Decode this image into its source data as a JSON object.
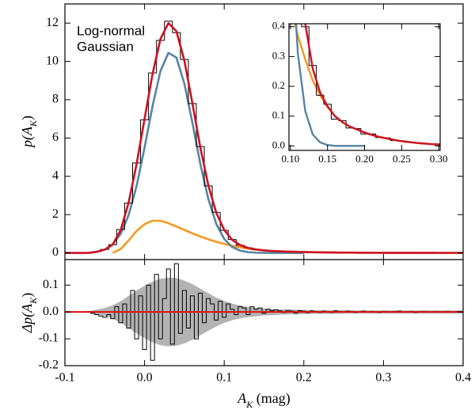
{
  "chart_data": [
    {
      "type": "line",
      "x": [
        -0.1,
        -0.09,
        -0.08,
        -0.07,
        -0.06,
        -0.05,
        -0.04,
        -0.03,
        -0.02,
        -0.01,
        0,
        0.01,
        0.02,
        0.03,
        0.04,
        0.05,
        0.06,
        0.07,
        0.08,
        0.09,
        0.1,
        0.11,
        0.12,
        0.13,
        0.14,
        0.15,
        0.16,
        0.17,
        0.18,
        0.19,
        0.2,
        0.21,
        0.22,
        0.23,
        0.24,
        0.25,
        0.26,
        0.27,
        0.28,
        0.29,
        0.3,
        0.31,
        0.32,
        0.33,
        0.34,
        0.35,
        0.36,
        0.37,
        0.38,
        0.39,
        0.4
      ],
      "series": [
        {
          "name": "Log-normal",
          "color": "#f39a1f",
          "values": [
            null,
            null,
            null,
            null,
            null,
            null,
            0,
            0.2,
            0.65,
            1.15,
            1.5,
            1.68,
            1.68,
            1.55,
            1.38,
            1.2,
            1.02,
            0.86,
            0.71,
            0.58,
            0.47,
            0.37,
            0.29,
            0.22,
            0.17,
            0.13,
            0.1,
            0.08,
            0.065,
            0.055,
            0.045,
            0.037,
            0.03,
            0.025,
            0.02,
            0.016,
            0.013,
            0.01,
            0.008,
            0.006,
            0.005,
            0.004,
            0.003,
            0.003,
            0.002,
            0.002,
            0.002,
            0.001,
            0.001,
            0.001,
            0.001
          ]
        },
        {
          "name": "Gaussian",
          "color": "#5784a3",
          "values": [
            null,
            null,
            null,
            null,
            0.06,
            0.17,
            0.44,
            0.99,
            1.98,
            3.49,
            5.5,
            7.66,
            9.5,
            10.45,
            10.2,
            8.84,
            6.81,
            4.65,
            2.83,
            1.52,
            0.73,
            0.31,
            0.117,
            0.039,
            0.012,
            0.003,
            0,
            0,
            0,
            0,
            0,
            null,
            null,
            null,
            null,
            null,
            null,
            null,
            null,
            null,
            null,
            null,
            null,
            null,
            null,
            null,
            null,
            null,
            null,
            null,
            null
          ]
        },
        {
          "color": "#000000",
          "steps": true,
          "values": [
            0,
            0,
            0,
            0.01,
            0.07,
            0.18,
            0.43,
            1.22,
            2.6,
            4.7,
            6.95,
            9.4,
            11.1,
            12.1,
            11.5,
            10.1,
            7.8,
            5.55,
            3.5,
            2.12,
            1.18,
            0.7,
            0.4,
            0.27,
            0.17,
            0.14,
            0.09,
            0.085,
            0.06,
            0.058,
            0.04,
            0.04,
            0.028,
            0.027,
            0.018,
            0.017,
            0.012,
            0.011,
            0.007,
            0.007,
            0.005,
            0.005,
            0.002,
            0.004,
            0.001,
            0.003,
            0.001,
            0.002,
            0,
            0.002,
            0.001
          ]
        },
        {
          "color": "#cc1122",
          "values": [
            0,
            0,
            0,
            0,
            0.06,
            0.17,
            0.44,
            1.19,
            2.63,
            4.64,
            7,
            9.34,
            11.18,
            12,
            11.58,
            10.04,
            7.83,
            5.51,
            3.54,
            2.1,
            1.2,
            0.68,
            0.41,
            0.26,
            0.18,
            0.133,
            0.1,
            0.08,
            0.065,
            0.055,
            0.045,
            0.037,
            0.03,
            0.025,
            0.02,
            0.016,
            0.013,
            0.01,
            0.008,
            0.006,
            0.005,
            0.004,
            0.003,
            0.003,
            0.002,
            0.002,
            0.002,
            0.001,
            0.001,
            0.001,
            0.001
          ]
        }
      ],
      "xlim": [
        -0.1,
        0.4
      ],
      "xticks": [
        -0.1,
        0,
        0.1,
        0.2,
        0.3,
        0.4
      ],
      "ylim": [
        -0.35,
        13
      ],
      "yticks": [
        0,
        2,
        4,
        6,
        8,
        10,
        12
      ],
      "ylabel": [
        "p(A",
        "K",
        ")"
      ],
      "legend": "upper left",
      "inset": {
        "xlim": [
          0.098,
          0.302
        ],
        "xticks": [
          {
            "value": 0.1,
            "label": "0.10"
          },
          0.15,
          {
            "value": 0.2,
            "label": "0.20"
          },
          0.25,
          {
            "value": 0.3,
            "label": "0.30"
          }
        ],
        "ylim": [
          -0.015,
          0.41
        ],
        "yticks": [
          {
            "value": 0,
            "label": "0.0"
          },
          0.1,
          0.2,
          0.3,
          0.4
        ]
      }
    },
    {
      "type": "line",
      "x": [
        -0.1,
        -0.095,
        -0.09,
        -0.085,
        -0.08,
        -0.075,
        -0.07,
        -0.065,
        -0.06,
        -0.055,
        -0.05,
        -0.045,
        -0.04,
        -0.035,
        -0.03,
        -0.025,
        -0.02,
        -0.015,
        -0.01,
        -0.005,
        0,
        0.005,
        0.01,
        0.015,
        0.02,
        0.025,
        0.03,
        0.035,
        0.04,
        0.045,
        0.05,
        0.055,
        0.06,
        0.065,
        0.07,
        0.075,
        0.08,
        0.085,
        0.09,
        0.095,
        0.1,
        0.105,
        0.11,
        0.115,
        0.12,
        0.125,
        0.13,
        0.135,
        0.14,
        0.145,
        0.15,
        0.155,
        0.16,
        0.165,
        0.17,
        0.175,
        0.18,
        0.185,
        0.19,
        0.195,
        0.2,
        0.205,
        0.21,
        0.215,
        0.22,
        0.225,
        0.23,
        0.235,
        0.24,
        0.245,
        0.25,
        0.255,
        0.26,
        0.265,
        0.27,
        0.275,
        0.28,
        0.285,
        0.29,
        0.295,
        0.3,
        0.305,
        0.31,
        0.315,
        0.32,
        0.325,
        0.33,
        0.335,
        0.34,
        0.345,
        0.35,
        0.355,
        0.36,
        0.365,
        0.37,
        0.375,
        0.38,
        0.385,
        0.39,
        0.395,
        0.4
      ],
      "series": [
        {
          "color": "#000000",
          "steps": true,
          "values": [
            0,
            0,
            0,
            0,
            0,
            0,
            0.002,
            -0.005,
            -0.01,
            -0.015,
            -0.02,
            -0.01,
            -0.025,
            0.02,
            -0.04,
            0.03,
            -0.06,
            0.08,
            -0.1,
            0.06,
            -0.14,
            0.1,
            -0.18,
            0.14,
            -0.1,
            0.05,
            0.16,
            -0.12,
            0.18,
            -0.08,
            0.08,
            -0.06,
            0.06,
            -0.1,
            0.07,
            -0.04,
            0.05,
            0.03,
            -0.03,
            0.04,
            -0.02,
            0.03,
            0.01,
            -0.01,
            0.02,
            0.015,
            -0.01,
            0.02,
            0.01,
            0.015,
            -0.005,
            0.01,
            0.005,
            0.008,
            0.004,
            -0.002,
            0.006,
            0.003,
            -0.004,
            0.005,
            0.003,
            -0.003,
            0.004,
            0.002,
            -0.002,
            0.003,
            0.001,
            -0.002,
            0.004,
            0.002,
            -0.001,
            0.003,
            0.002,
            -0.002,
            0.001,
            0.003,
            -0.001,
            0.002,
            0.001,
            -0.002,
            0.002,
            0.001,
            -0.001,
            0.002,
            0.003,
            -0.001,
            0.001,
            0.002,
            -0.002,
            0.001,
            0.002,
            0.001,
            -0.001,
            0.002,
            0.001,
            0,
            0.002,
            -0.001,
            0.001,
            0.002,
            0.001
          ]
        }
      ],
      "band": {
        "color": "#b3b3b3",
        "x": [
          -0.1,
          -0.09,
          -0.08,
          -0.07,
          -0.06,
          -0.05,
          -0.04,
          -0.03,
          -0.02,
          -0.01,
          0,
          0.01,
          0.02,
          0.03,
          0.04,
          0.05,
          0.06,
          0.07,
          0.08,
          0.09,
          0.1,
          0.11,
          0.12,
          0.13,
          0.14,
          0.15,
          0.16,
          0.17,
          0.18,
          0.19,
          0.2,
          0.21,
          0.22,
          0.23,
          0.24,
          0.25,
          0.26,
          0.27,
          0.28,
          0.29,
          0.3,
          0.31,
          0.32,
          0.33,
          0.34,
          0.35,
          0.36,
          0.37,
          0.38,
          0.39,
          0.4
        ],
        "values": [
          0.003,
          0.003,
          0.003,
          0.003,
          0.009,
          0.015,
          0.025,
          0.04,
          0.06,
          0.08,
          0.098,
          0.113,
          0.124,
          0.128,
          0.126,
          0.117,
          0.104,
          0.087,
          0.07,
          0.054,
          0.041,
          0.031,
          0.024,
          0.019,
          0.016,
          0.013,
          0.012,
          0.01,
          0.009,
          0.009,
          0.008,
          0.007,
          0.007,
          0.007,
          0.007,
          0.007,
          0.006,
          0.006,
          0.006,
          0.006,
          0.006,
          0.006,
          0.006,
          0.006,
          0.006,
          0.006,
          0.006,
          0.006,
          0.006,
          0.006,
          0.006
        ]
      },
      "reference_line": {
        "value": 0,
        "color": "#dd1111"
      },
      "xlim": [
        -0.1,
        0.4
      ],
      "xticks": [
        -0.1,
        {
          "value": 0,
          "label": "0.0"
        },
        0.1,
        0.2,
        0.3,
        0.4
      ],
      "ylim": [
        -0.2,
        0.195
      ],
      "yticks": [
        -0.2,
        -0.1,
        {
          "value": 0,
          "label": "0.0"
        },
        0.1
      ],
      "ylabel": [
        "Δp(A",
        "K",
        ")"
      ],
      "xlabel": [
        "A",
        "K",
        " (mag)"
      ]
    }
  ]
}
